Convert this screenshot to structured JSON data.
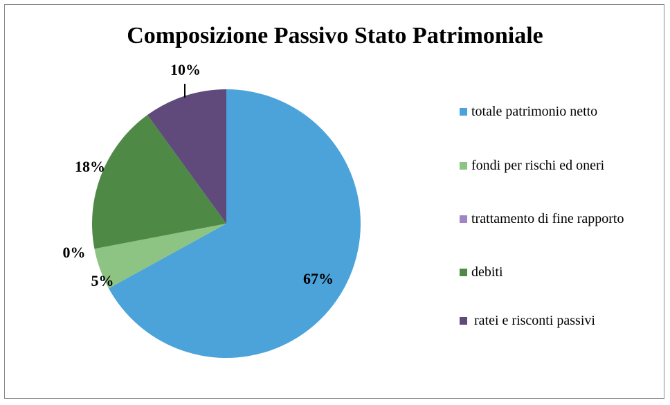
{
  "chart_data": {
    "type": "pie",
    "title": "Composizione Passivo Stato Patrimoniale",
    "categories": [
      "totale patrimonio netto",
      "fondi per rischi ed oneri",
      "trattamento di fine rapporto",
      "debiti",
      "ratei e risconti passivi"
    ],
    "values": [
      67,
      5,
      0,
      18,
      10
    ],
    "value_labels": [
      "67%",
      "5%",
      "0%",
      "18%",
      "10%"
    ],
    "colors": [
      "#4ba3da",
      "#8dc383",
      "#9e86c4",
      "#4e8a45",
      "#5f4a7b"
    ],
    "legend": "right"
  }
}
